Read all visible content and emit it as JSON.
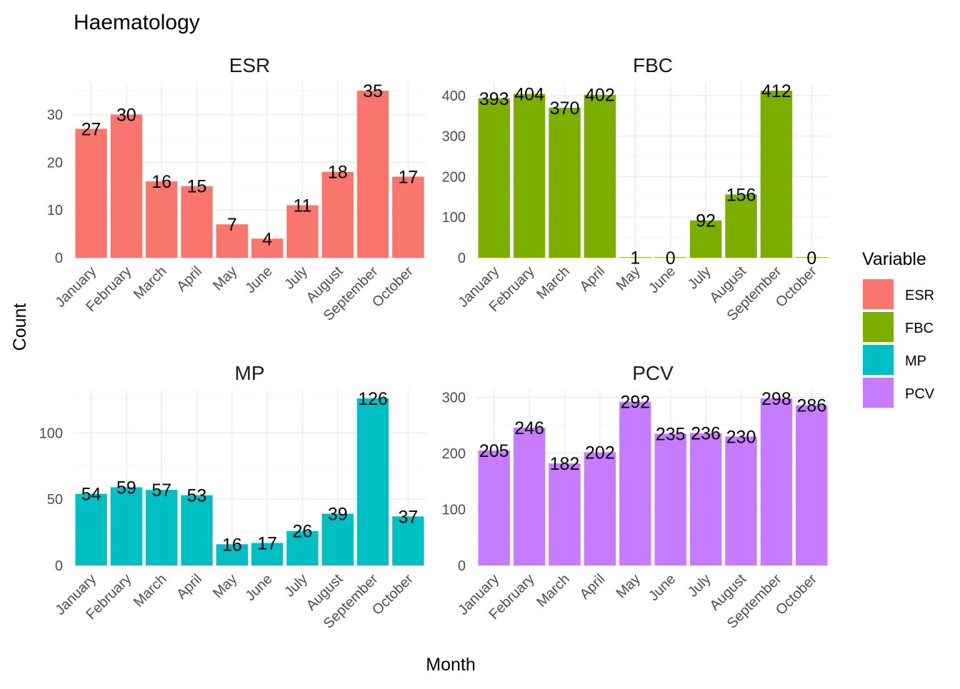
{
  "chart_data": {
    "type": "bar",
    "title": "Haematology",
    "xlabel": "Month",
    "ylabel": "Count",
    "categories": [
      "January",
      "February",
      "March",
      "April",
      "May",
      "June",
      "July",
      "August",
      "September",
      "October"
    ],
    "legend": {
      "title": "Variable",
      "placement": "right",
      "items": [
        {
          "name": "ESR",
          "color": "#F8766D"
        },
        {
          "name": "FBC",
          "color": "#7CAE00"
        },
        {
          "name": "MP",
          "color": "#00BFC4"
        },
        {
          "name": "PCV",
          "color": "#C77CFF"
        }
      ]
    },
    "grid": true,
    "facets": [
      {
        "name": "ESR",
        "color": "#F8766D",
        "values": [
          27,
          30,
          16,
          15,
          7,
          4,
          11,
          18,
          35,
          17
        ],
        "ylim": [
          0,
          35
        ],
        "yticks": [
          0,
          10,
          20,
          30
        ]
      },
      {
        "name": "FBC",
        "color": "#7CAE00",
        "values": [
          393,
          404,
          370,
          402,
          1,
          0,
          92,
          156,
          412,
          0
        ],
        "ylim": [
          0,
          412
        ],
        "yticks": [
          0,
          100,
          200,
          300,
          400
        ]
      },
      {
        "name": "MP",
        "color": "#00BFC4",
        "values": [
          54,
          59,
          57,
          53,
          16,
          17,
          26,
          39,
          126,
          37
        ],
        "ylim": [
          0,
          126
        ],
        "yticks": [
          0,
          50,
          100
        ]
      },
      {
        "name": "PCV",
        "color": "#C77CFF",
        "values": [
          205,
          246,
          182,
          202,
          292,
          235,
          236,
          230,
          298,
          286
        ],
        "ylim": [
          0,
          298
        ],
        "yticks": [
          0,
          100,
          200,
          300
        ]
      }
    ]
  }
}
